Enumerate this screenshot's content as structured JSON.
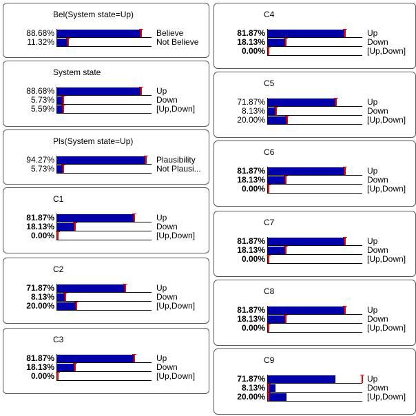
{
  "nodes": [
    {
      "title": "Bel(System state=Up)",
      "bold": false,
      "rows": [
        {
          "pct": "88.68%",
          "label": "Believe",
          "value": 0.8868,
          "marker": 0.8868
        },
        {
          "pct": "11.32%",
          "label": "Not Believe",
          "value": 0.1132,
          "marker": 0.1132
        }
      ]
    },
    {
      "title": "System state",
      "bold": false,
      "rows": [
        {
          "pct": "88.68%",
          "label": "Up",
          "value": 0.8868,
          "marker": 0.8868
        },
        {
          "pct": "5.73%",
          "label": "Down",
          "value": 0.0573,
          "marker": 0.0573
        },
        {
          "pct": "5.59%",
          "label": "[Up,Down]",
          "value": 0.0559,
          "marker": 0.0559
        }
      ]
    },
    {
      "title": "Pls(System state=Up)",
      "bold": false,
      "rows": [
        {
          "pct": "94.27%",
          "label": "Plausibility",
          "value": 0.9427,
          "marker": 0.9427
        },
        {
          "pct": "5.73%",
          "label": "Not Plausi...",
          "value": 0.0573,
          "marker": 0.0573
        }
      ]
    },
    {
      "title": "C1",
      "bold": true,
      "rows": [
        {
          "pct": "81.87%",
          "label": "Up",
          "value": 0.8187,
          "marker": 0.8187
        },
        {
          "pct": "18.13%",
          "label": "Down",
          "value": 0.1813,
          "marker": 0.1813
        },
        {
          "pct": "0.00%",
          "label": "[Up,Down]",
          "value": 0.0,
          "marker": 0.0
        }
      ]
    },
    {
      "title": "C2",
      "bold": true,
      "rows": [
        {
          "pct": "71.87%",
          "label": "Up",
          "value": 0.7187,
          "marker": 0.7187
        },
        {
          "pct": "8.13%",
          "label": "Down",
          "value": 0.0813,
          "marker": 0.0813
        },
        {
          "pct": "20.00%",
          "label": "[Up,Down]",
          "value": 0.2,
          "marker": 0.2
        }
      ]
    },
    {
      "title": "C3",
      "bold": true,
      "rows": [
        {
          "pct": "81.87%",
          "label": "Up",
          "value": 0.8187,
          "marker": 0.8187
        },
        {
          "pct": "18.13%",
          "label": "Down",
          "value": 0.1813,
          "marker": 0.1813
        },
        {
          "pct": "0.00%",
          "label": "[Up,Down]",
          "value": 0.0,
          "marker": 0.0
        }
      ]
    },
    {
      "title": "C4",
      "bold": true,
      "rows": [
        {
          "pct": "81.87%",
          "label": "Up",
          "value": 0.8187,
          "marker": 0.8187
        },
        {
          "pct": "18.13%",
          "label": "Down",
          "value": 0.1813,
          "marker": 0.1813
        },
        {
          "pct": "0.00%",
          "label": "[Up,Down]",
          "value": 0.0,
          "marker": 0.0
        }
      ]
    },
    {
      "title": "C5",
      "bold": false,
      "rows": [
        {
          "pct": "71.87%",
          "label": "Up",
          "value": 0.7187,
          "marker": 0.7187
        },
        {
          "pct": "8.13%",
          "label": "Down",
          "value": 0.0813,
          "marker": 0.0813
        },
        {
          "pct": "20.00%",
          "label": "[Up,Down]",
          "value": 0.2,
          "marker": 0.2
        }
      ]
    },
    {
      "title": "C6",
      "bold": true,
      "rows": [
        {
          "pct": "81.87%",
          "label": "Up",
          "value": 0.8187,
          "marker": 0.8187
        },
        {
          "pct": "18.13%",
          "label": "Down",
          "value": 0.1813,
          "marker": 0.1813
        },
        {
          "pct": "0.00%",
          "label": "[Up,Down]",
          "value": 0.0,
          "marker": 0.0
        }
      ]
    },
    {
      "title": "C7",
      "bold": true,
      "rows": [
        {
          "pct": "81.87%",
          "label": "Up",
          "value": 0.8187,
          "marker": 0.8187
        },
        {
          "pct": "18.13%",
          "label": "Down",
          "value": 0.1813,
          "marker": 0.1813
        },
        {
          "pct": "0.00%",
          "label": "[Up,Down]",
          "value": 0.0,
          "marker": 0.0
        }
      ]
    },
    {
      "title": "C8",
      "bold": true,
      "rows": [
        {
          "pct": "81.87%",
          "label": "Up",
          "value": 0.8187,
          "marker": 0.8187
        },
        {
          "pct": "18.13%",
          "label": "Down",
          "value": 0.1813,
          "marker": 0.1813
        },
        {
          "pct": "0.00%",
          "label": "[Up,Down]",
          "value": 0.0,
          "marker": 0.0
        }
      ]
    },
    {
      "title": "C9",
      "bold": true,
      "rows": [
        {
          "pct": "71.87%",
          "label": "Up",
          "value": 0.7187,
          "marker": 1.0
        },
        {
          "pct": "8.13%",
          "label": "Down",
          "value": 0.0813,
          "marker": 0.0
        },
        {
          "pct": "20.00%",
          "label": "[Up,Down]",
          "value": 0.2,
          "marker": 0.0
        }
      ]
    }
  ],
  "colors": {
    "bar": "#0000aa",
    "marker": "#ff0000",
    "border": "#555555"
  }
}
